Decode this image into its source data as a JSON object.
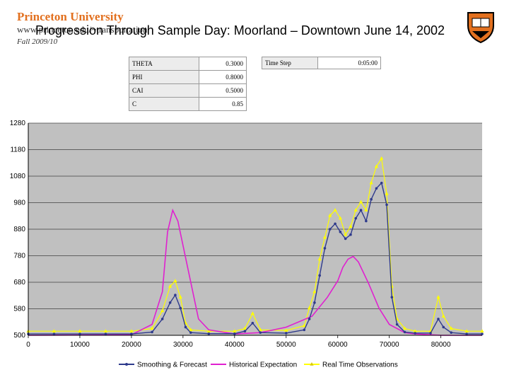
{
  "header": {
    "logo": "Princeton University",
    "url": "www.princeton.edu/~transportation",
    "title": "Progression Through Sample Day:   Moorland – Downtown June 14, 2002",
    "term": "Fall 2009/10"
  },
  "params": [
    {
      "key": "THETA",
      "value": "0.3000"
    },
    {
      "key": "PHI",
      "value": "0.8000"
    },
    {
      "key": "CAI",
      "value": "0.5000"
    },
    {
      "key": "C",
      "value": "0.85"
    }
  ],
  "timestep": {
    "key": "Time Step",
    "value": "0:05:00"
  },
  "colors": {
    "smoothing": "#2e3a8c",
    "historical": "#e020d0",
    "realtime": "#ffff00",
    "plot_bg": "#c0c0c0"
  },
  "chart_data": {
    "type": "line",
    "xlim": [
      0,
      88000
    ],
    "ylim": [
      500,
      1280
    ],
    "x_ticks": [
      0,
      10000,
      20000,
      30000,
      40000,
      50000,
      60000,
      70000,
      80000
    ],
    "y_ticks": [
      "500",
      "580",
      "680",
      "780",
      "880",
      "980",
      "1080",
      "1180",
      "1280"
    ],
    "legend": [
      "Smoothing & Forecast",
      "Historical Expectation",
      "Real Time Observations"
    ],
    "legend_position": "bottom",
    "series": [
      {
        "name": "Smoothing & Forecast",
        "x": [
          0,
          5000,
          10000,
          15000,
          20000,
          24000,
          26000,
          27500,
          28500,
          29500,
          30500,
          31500,
          35000,
          40000,
          42000,
          43500,
          45000,
          50000,
          53500,
          54500,
          55500,
          56500,
          57500,
          58500,
          59500,
          60500,
          61500,
          62500,
          63500,
          64500,
          65500,
          66500,
          67500,
          68500,
          69500,
          70500,
          71500,
          73000,
          75000,
          78000,
          79500,
          80500,
          82000,
          85000,
          88000
        ],
        "y": [
          505,
          505,
          505,
          505,
          505,
          512,
          560,
          620,
          648,
          600,
          530,
          510,
          506,
          506,
          515,
          545,
          510,
          508,
          520,
          560,
          620,
          720,
          820,
          890,
          910,
          880,
          855,
          870,
          930,
          960,
          920,
          1000,
          1040,
          1060,
          980,
          640,
          540,
          512,
          508,
          508,
          560,
          530,
          510,
          505,
          505
        ]
      },
      {
        "name": "Historical Expectation",
        "x": [
          0,
          20000,
          24000,
          26000,
          27000,
          28000,
          29000,
          31000,
          33000,
          35000,
          40000,
          45000,
          50000,
          55000,
          58000,
          60000,
          61000,
          62000,
          63000,
          64000,
          66000,
          68000,
          70000,
          73000,
          75000,
          80000,
          88000
        ],
        "y": [
          500,
          502,
          540,
          660,
          880,
          960,
          920,
          740,
          560,
          520,
          505,
          510,
          530,
          570,
          640,
          700,
          750,
          780,
          790,
          770,
          690,
          600,
          540,
          510,
          505,
          500,
          500
        ]
      },
      {
        "name": "Real Time Observations",
        "x": [
          0,
          5000,
          10000,
          15000,
          20000,
          24000,
          26000,
          27500,
          28500,
          29500,
          30500,
          31500,
          35000,
          40000,
          42000,
          43500,
          45000,
          50000,
          53500,
          54500,
          55500,
          56500,
          57500,
          58500,
          59500,
          60500,
          61500,
          62500,
          63500,
          64500,
          65500,
          66500,
          67500,
          68500,
          69500,
          70500,
          71500,
          73000,
          75000,
          78000,
          79500,
          80500,
          82000,
          85000,
          88000
        ],
        "y": [
          515,
          515,
          515,
          515,
          515,
          525,
          590,
          680,
          700,
          640,
          545,
          520,
          515,
          515,
          525,
          580,
          520,
          518,
          535,
          600,
          660,
          780,
          860,
          940,
          960,
          930,
          870,
          900,
          960,
          990,
          960,
          1060,
          1120,
          1150,
          1020,
          680,
          560,
          525,
          515,
          515,
          640,
          570,
          525,
          515,
          515
        ]
      }
    ]
  }
}
